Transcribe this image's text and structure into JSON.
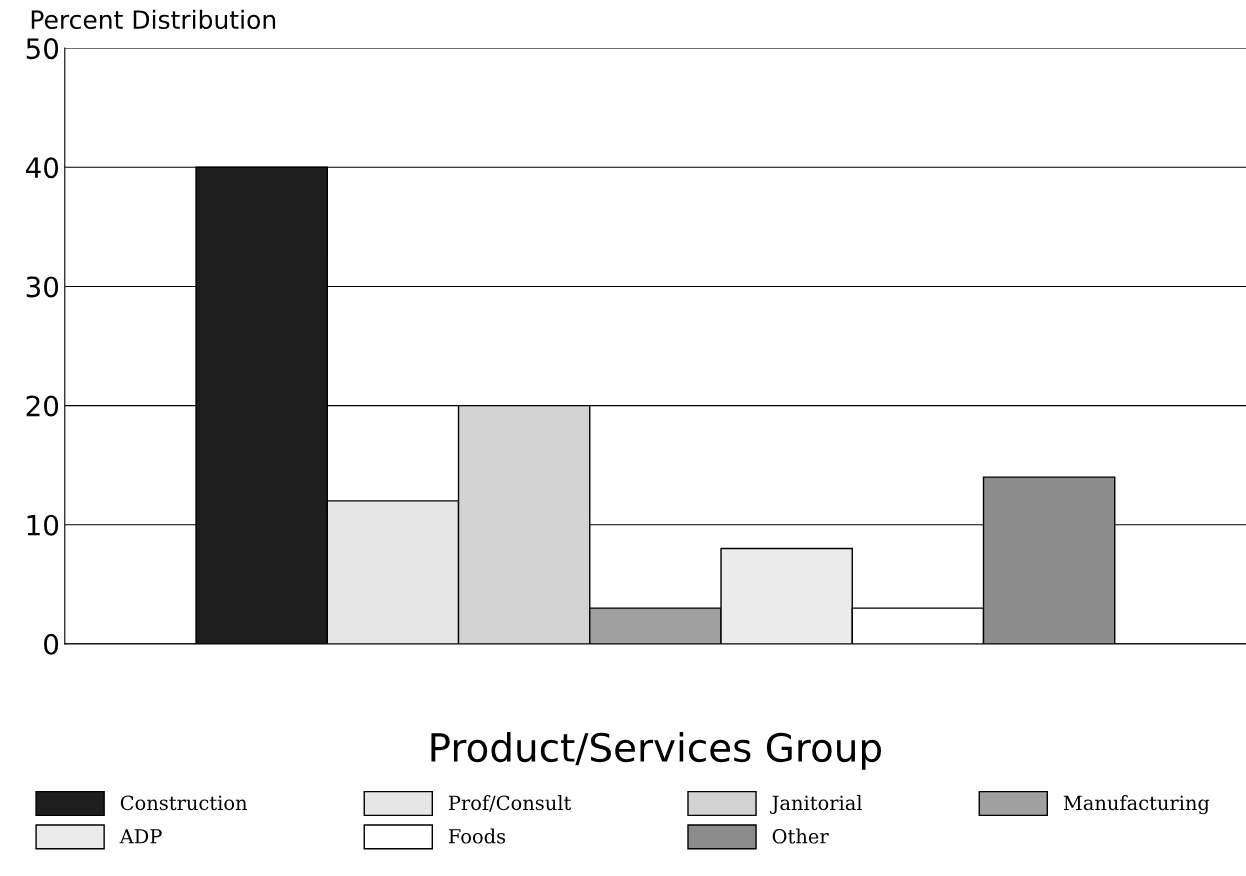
{
  "chart_data": {
    "type": "bar",
    "ylabel": "Percent Distribution",
    "xlabel": "Product/Services Group",
    "categories": [
      null,
      null,
      null,
      null,
      null,
      null,
      null,
      null,
      null
    ],
    "series": [
      {
        "name": "Construction",
        "color": "#1e1e1e",
        "values": [
          null,
          40,
          null,
          null,
          null,
          null,
          null,
          null,
          null
        ]
      },
      {
        "name": "Prof/Consult",
        "color": "#e6e6e6",
        "values": [
          null,
          null,
          12,
          null,
          null,
          null,
          null,
          null,
          null
        ]
      },
      {
        "name": "Janitorial",
        "color": "#d2d2d2",
        "values": [
          null,
          null,
          null,
          20,
          null,
          null,
          null,
          null,
          null
        ]
      },
      {
        "name": "Manufacturing",
        "color": "#a0a0a0",
        "values": [
          null,
          null,
          null,
          null,
          3,
          null,
          null,
          null,
          null
        ]
      },
      {
        "name": "ADP",
        "color": "#ebebeb",
        "values": [
          null,
          null,
          null,
          null,
          null,
          8,
          null,
          null,
          null
        ]
      },
      {
        "name": "Foods",
        "color": "#ffffff",
        "values": [
          null,
          null,
          null,
          null,
          null,
          null,
          3,
          null,
          null
        ]
      },
      {
        "name": "Other",
        "color": "#8c8c8c",
        "values": [
          null,
          null,
          null,
          null,
          null,
          null,
          null,
          14,
          null
        ]
      }
    ],
    "ylim": [
      0,
      50
    ],
    "yticks": [
      0,
      10,
      20,
      30,
      40,
      50
    ],
    "grid": "y",
    "legend": "bottom"
  }
}
